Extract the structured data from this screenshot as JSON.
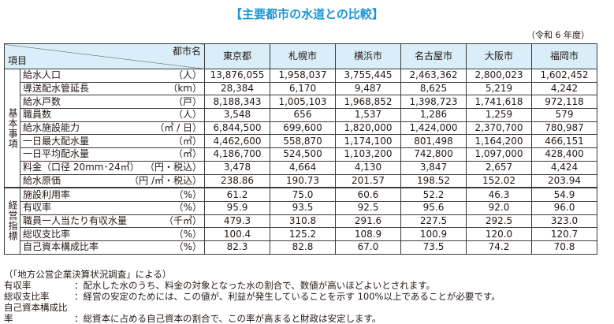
{
  "title": "【主要都市の水道との比較】",
  "year": "（令和 6 年度）",
  "header": {
    "city_label": "都市名",
    "item_label": "項目",
    "cities": [
      "東京都",
      "札幌市",
      "横浜市",
      "名古屋市",
      "大阪市",
      "福岡市"
    ]
  },
  "groups": [
    {
      "label": "基本事項"
    },
    {
      "label": "経営指標"
    }
  ],
  "rows": [
    {
      "item": "給水人口",
      "unit": "（人）",
      "values": [
        "13,876,055",
        "1,958,037",
        "3,755,445",
        "2,463,362",
        "2,800,023",
        "1,602,452"
      ]
    },
    {
      "item": "導送配水管延長",
      "unit": "（km）",
      "values": [
        "28,384",
        "6,170",
        "9,487",
        "8,625",
        "5,219",
        "4,242"
      ]
    },
    {
      "item": "給水戸数",
      "unit": "（戸）",
      "values": [
        "8,188,343",
        "1,005,103",
        "1,968,852",
        "1,398,723",
        "1,741,618",
        "972,118"
      ]
    },
    {
      "item": "職員数",
      "unit": "（人）",
      "values": [
        "3,548",
        "656",
        "1,537",
        "1,286",
        "1,259",
        "579"
      ]
    },
    {
      "item": "給水施設能力",
      "unit": "（㎥ / 日）",
      "values": [
        "6,844,500",
        "699,600",
        "1,820,000",
        "1,424,000",
        "2,370,700",
        "780,987"
      ]
    },
    {
      "item": "一日最大配水量",
      "unit": "（㎥）",
      "values": [
        "4,462,600",
        "558,870",
        "1,174,100",
        "801,498",
        "1,164,200",
        "466,151"
      ]
    },
    {
      "item": "一日平均配水量",
      "unit": "（㎥）",
      "values": [
        "4,186,700",
        "524,500",
        "1,103,200",
        "742,800",
        "1,097,000",
        "428,400"
      ]
    },
    {
      "item": "料金（口径 20mm･24㎥）",
      "unit": "（円・税込）",
      "values": [
        "3,478",
        "4,664",
        "4,130",
        "3,847",
        "2,657",
        "4,424"
      ]
    },
    {
      "item": "給水原価",
      "unit": "（円 /㎥・税込）",
      "values": [
        "238.86",
        "190.73",
        "201.57",
        "198.52",
        "152.02",
        "203.94"
      ]
    },
    {
      "item": "施設利用率",
      "unit": "（%）",
      "values": [
        "61.2",
        "75.0",
        "60.6",
        "52.2",
        "46.3",
        "54.9"
      ]
    },
    {
      "item": "有収率",
      "unit": "（%）",
      "values": [
        "95.9",
        "93.5",
        "92.5",
        "95.6",
        "92.0",
        "96.0"
      ]
    },
    {
      "item": "職員一人当たり有収水量",
      "unit": "（千㎥）",
      "values": [
        "479.3",
        "310.8",
        "291.6",
        "227.5",
        "292.5",
        "323.0"
      ]
    },
    {
      "item": "総収支比率",
      "unit": "（%）",
      "values": [
        "100.4",
        "125.2",
        "108.9",
        "100.9",
        "120.0",
        "120.7"
      ]
    },
    {
      "item": "自己資本構成比率",
      "unit": "（%）",
      "values": [
        "82.3",
        "82.8",
        "67.0",
        "73.5",
        "74.2",
        "70.8"
      ]
    }
  ],
  "notes": {
    "source": "（「地方公営企業決算状況調査」による）",
    "defs": [
      {
        "term": "有収率",
        "desc": "：配水した水のうち、料金の対象となった水の割合で、数値が高いほどよいとされます。"
      },
      {
        "term": "総収支比率",
        "desc": "：経営の安定のためには、この値が、利益が発生していることを示す 100%以上であることが必要です。"
      },
      {
        "term": "自己資本構成比率",
        "desc": "：総資本に占める自己資本の割合で、この率が高まると財政は安定します。"
      }
    ]
  }
}
